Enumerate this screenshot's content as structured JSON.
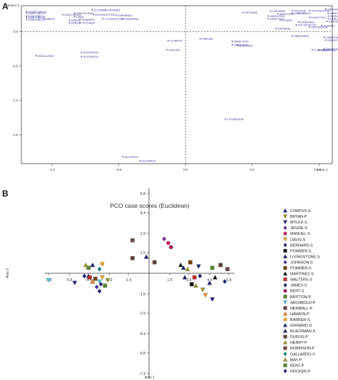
{
  "panels": {
    "a": "A",
    "b": "B"
  },
  "chart_data": [
    {
      "type": "scatter",
      "xlabel": "Facteur 1",
      "ylabel": "Facteur 2",
      "x_ticks": [
        "-1.0",
        "-0.5",
        "0.0",
        "0.5",
        "1.0"
      ],
      "y_ticks": [
        "-1.5",
        "-1.0",
        "-0.5",
        "0.0"
      ],
      "xlim": [
        -1.23,
        1.1
      ],
      "ylim": [
        -1.92,
        0.38
      ],
      "point_color": "#3a3a9c",
      "points": [
        {
          "label": "26SARCHBOLD",
          "x": -1.19,
          "y": 0.29
        },
        {
          "label": "23ARCHBOLD",
          "x": -1.19,
          "y": 0.27
        },
        {
          "label": "27ARCHBOLD",
          "x": -1.19,
          "y": 0.23
        },
        {
          "label": "25ARCHBOLD",
          "x": -1.19,
          "y": 0.21
        },
        {
          "label": "22ARCHBOLD",
          "x": -1.19,
          "y": 0.18
        },
        {
          "label": "26BENT",
          "x": -1.06,
          "y": 0.19
        },
        {
          "label": "21ARCHBOLD",
          "x": -0.92,
          "y": 0.25
        },
        {
          "label": "19BENT",
          "x": -0.87,
          "y": 0.17
        },
        {
          "label": "20BENT",
          "x": -0.87,
          "y": 0.13
        },
        {
          "label": "23BLACKHAW",
          "x": -0.83,
          "y": 0.27
        },
        {
          "label": "13BAY",
          "x": -0.83,
          "y": 0.22
        },
        {
          "label": "22HAWKIN",
          "x": -0.79,
          "y": 0.18
        },
        {
          "label": "17FOSHER",
          "x": -0.79,
          "y": 0.13
        },
        {
          "label": "20TJAMES",
          "x": -0.7,
          "y": 0.32
        },
        {
          "label": "19HJAMES",
          "x": -0.6,
          "y": 0.32
        },
        {
          "label": "22LIVINGSTONE",
          "x": -0.69,
          "y": 0.25
        },
        {
          "label": "17LIVINGSTONE",
          "x": -0.62,
          "y": 0.19
        },
        {
          "label": "21NEWBALL",
          "x": -0.52,
          "y": 0.24
        },
        {
          "label": "16NEWBALL",
          "x": -0.47,
          "y": 0.19
        },
        {
          "label": "29POMMIE",
          "x": 0.43,
          "y": 0.28
        },
        {
          "label": "15POMMIE",
          "x": 0.64,
          "y": 0.3
        },
        {
          "label": "22DUFFIS",
          "x": 0.8,
          "y": 0.31
        },
        {
          "label": "14MYLES",
          "x": 0.8,
          "y": 0.27
        },
        {
          "label": "16WALTERS",
          "x": 0.62,
          "y": 0.23
        },
        {
          "label": "16WALTERS",
          "x": 0.69,
          "y": 0.26
        },
        {
          "label": "15BRITTON",
          "x": 0.62,
          "y": 0.19
        },
        {
          "label": "19JOHNSTONE",
          "x": 0.93,
          "y": 0.31
        },
        {
          "label": "23DAVIS",
          "x": 0.85,
          "y": 0.27
        },
        {
          "label": "21WHITTON",
          "x": 0.93,
          "y": 0.21
        },
        {
          "label": "23BRYAN",
          "x": 1.05,
          "y": 0.33
        },
        {
          "label": "22BRYAN",
          "x": 1.07,
          "y": 0.27
        },
        {
          "label": "12MALVAN",
          "x": 1.07,
          "y": 0.23
        },
        {
          "label": "21BRYAN",
          "x": 1.07,
          "y": 0.19
        },
        {
          "label": "20BRYAN",
          "x": 1.06,
          "y": 0.15
        },
        {
          "label": "12HENRY",
          "x": 1.02,
          "y": 0.09
        },
        {
          "label": "16MARTINEZ",
          "x": 1.04,
          "y": -0.08
        },
        {
          "label": "25MARTINEZ",
          "x": 1.05,
          "y": -0.12
        },
        {
          "label": "16MARTINEZ",
          "x": 1.04,
          "y": -0.25
        },
        {
          "label": "15MARTINEZ",
          "x": 1.0,
          "y": -0.27
        },
        {
          "label": "21JOHNSON",
          "x": 0.95,
          "y": -0.26
        },
        {
          "label": "23BERNARD",
          "x": 0.8,
          "y": -0.06
        },
        {
          "label": "19MANUEL",
          "x": 0.68,
          "y": 0.05
        },
        {
          "label": "21PLANTATION",
          "x": 0.83,
          "y": 0.1
        },
        {
          "label": "22ROBINSON",
          "x": 0.93,
          "y": 0.07
        },
        {
          "label": "23NEWBALL",
          "x": 0.85,
          "y": 0.14
        },
        {
          "label": "27DAVIS",
          "x": 0.71,
          "y": 0.17
        },
        {
          "label": "25WALTERS",
          "x": 0.35,
          "y": -0.19
        },
        {
          "label": "35HOCKER",
          "x": 0.39,
          "y": -0.2
        },
        {
          "label": "26WALTERS",
          "x": 0.35,
          "y": -0.14
        },
        {
          "label": "27BRYAN",
          "x": 0.11,
          "y": -0.1
        },
        {
          "label": "17GIBSON",
          "x": -0.13,
          "y": -0.13
        },
        {
          "label": "18JESSIE",
          "x": -0.14,
          "y": -0.26
        },
        {
          "label": "16JOHNSON",
          "x": -0.78,
          "y": -0.3
        },
        {
          "label": "15JOHNSON",
          "x": -0.78,
          "y": -0.36
        },
        {
          "label": "30GALLARDO",
          "x": -1.12,
          "y": -0.35
        },
        {
          "label": "17ROBINSON",
          "x": 0.3,
          "y": -1.27
        },
        {
          "label": "18CORRUS",
          "x": -0.47,
          "y": -1.82
        },
        {
          "label": "20CORRUS",
          "x": -0.34,
          "y": -1.88
        }
      ]
    },
    {
      "type": "scatter",
      "title": "PCO case scores (Euclidean)",
      "xlabel": "Axis 1",
      "ylabel": "Axis 2",
      "x_ticks": [
        "-7.3",
        "-5.8",
        "-4.4",
        "-2.9",
        "-1.5",
        "1.5",
        "2.9",
        "4.4",
        "5.8"
      ],
      "x_tick_values": [
        -7.3,
        -5.8,
        -4.4,
        -2.9,
        -1.5,
        1.5,
        2.9,
        4.4,
        5.8
      ],
      "y_ticks": [
        "5.8",
        "4.4",
        "2.9",
        "1.5",
        "-1.5",
        "-2.9",
        "-4.4",
        "-5.8",
        "-7.3"
      ],
      "y_tick_values": [
        5.8,
        4.4,
        2.9,
        1.5,
        -1.5,
        -2.9,
        -4.4,
        -5.8,
        -7.3
      ],
      "xlim": [
        -7.6,
        6.2
      ],
      "ylim": [
        -7.6,
        6.2
      ],
      "legend": [
        {
          "name": "CORPUS-S",
          "shape": "tri",
          "color": "#1a237e"
        },
        {
          "name": "BRYAN-P",
          "shape": "tri-down",
          "color": "#9e9d24"
        },
        {
          "name": "MYLES-S",
          "shape": "tri-down",
          "color": "#1a237e"
        },
        {
          "name": "JESSIE-S",
          "shape": "diamond",
          "color": "#7b1fa2"
        },
        {
          "name": "MANUEL-S",
          "shape": "circle",
          "color": "#d81b60"
        },
        {
          "name": "DAVIS-S",
          "shape": "tri-down",
          "color": "#f9a825"
        },
        {
          "name": "BERNARD-S",
          "shape": "diamond",
          "color": "#1a237e"
        },
        {
          "name": "POMMER-S",
          "shape": "square",
          "color": "#111111"
        },
        {
          "name": "LIVINGSTONE-S",
          "shape": "tri",
          "color": "#1a237e"
        },
        {
          "name": "JOHNSON-S",
          "shape": "diamond",
          "color": "#512da8"
        },
        {
          "name": "POMMER-S",
          "shape": "square",
          "color": "#7b3f00"
        },
        {
          "name": "MARTINEZ-S",
          "shape": "tri",
          "color": "#111111"
        },
        {
          "name": "WALTERS-S",
          "shape": "square",
          "color": "#c62828"
        },
        {
          "name": "JAMES-S",
          "shape": "diamond",
          "color": "#1a237e"
        },
        {
          "name": "BENT-S",
          "shape": "circle",
          "color": "#ad1457"
        },
        {
          "name": "BRITTON-P",
          "shape": "square",
          "color": "#558b2f"
        },
        {
          "name": "ARCHBOLD-P",
          "shape": "tri-down",
          "color": "#4dd0e1"
        },
        {
          "name": "NEWBALL-P",
          "shape": "square",
          "color": "#5d4037"
        },
        {
          "name": "HAWKIN-P",
          "shape": "tri",
          "color": "#f57f17"
        },
        {
          "name": "BARKER-S",
          "shape": "circle",
          "color": "#f9a825"
        },
        {
          "name": "GRINARD-S",
          "shape": "tri",
          "color": "#1a237e"
        },
        {
          "name": "BLACKMAN-S",
          "shape": "tri",
          "color": "#1a237e"
        },
        {
          "name": "DUFFIS-P",
          "shape": "square",
          "color": "#5d4037"
        },
        {
          "name": "HENRY-P",
          "shape": "tri",
          "color": "#9e9d24"
        },
        {
          "name": "ROBINSON-P",
          "shape": "square",
          "color": "#6d4c41"
        },
        {
          "name": "GALLARDO-S",
          "shape": "diamond",
          "color": "#00897b"
        },
        {
          "name": "MAY-P",
          "shape": "tri",
          "color": "#9e9d24"
        },
        {
          "name": "BENT-P",
          "shape": "square",
          "color": "#558b2f"
        },
        {
          "name": "HOCKER-P",
          "shape": "diamond",
          "color": "#1a237e"
        }
      ],
      "points": [
        {
          "x": -7.3,
          "y": -0.5,
          "s": 16
        },
        {
          "x": -5.4,
          "y": -0.7,
          "s": 2
        },
        {
          "x": -4.7,
          "y": -0.2,
          "s": 6
        },
        {
          "x": -4.4,
          "y": -0.2,
          "s": 20
        },
        {
          "x": -4.3,
          "y": -0.3,
          "s": 12
        },
        {
          "x": -4.1,
          "y": -0.6,
          "s": 18
        },
        {
          "x": -3.9,
          "y": -0.4,
          "s": 10
        },
        {
          "x": -3.6,
          "y": -0.6,
          "s": 16
        },
        {
          "x": -4.4,
          "y": 0.4,
          "s": 15
        },
        {
          "x": -4.6,
          "y": 0.6,
          "s": 26
        },
        {
          "x": -4.1,
          "y": 0.6,
          "s": 21
        },
        {
          "x": -3.6,
          "y": 0.3,
          "s": 25
        },
        {
          "x": -3.4,
          "y": -0.3,
          "s": 5
        },
        {
          "x": -3.8,
          "y": -1.0,
          "s": 9
        },
        {
          "x": -3.6,
          "y": -1.3,
          "s": 28
        },
        {
          "x": -3.5,
          "y": -0.8,
          "s": 13
        },
        {
          "x": -3.4,
          "y": 0.7,
          "s": 19
        },
        {
          "x": -3.2,
          "y": -0.9,
          "s": 27
        },
        {
          "x": -3.0,
          "y": -0.5,
          "s": 1
        },
        {
          "x": -1.2,
          "y": 1.1,
          "s": 17
        },
        {
          "x": -1.2,
          "y": 2.4,
          "s": 24
        },
        {
          "x": -0.2,
          "y": 1.2,
          "s": 0
        },
        {
          "x": 0.4,
          "y": 0.8,
          "s": 22
        },
        {
          "x": 1.1,
          "y": 2.5,
          "s": 3
        },
        {
          "x": 1.4,
          "y": 2.2,
          "s": 4
        },
        {
          "x": 1.6,
          "y": 1.9,
          "s": 14
        },
        {
          "x": 2.3,
          "y": 0.6,
          "s": 11
        },
        {
          "x": 2.5,
          "y": 0.4,
          "s": 21
        },
        {
          "x": 2.6,
          "y": -0.3,
          "s": 0
        },
        {
          "x": 2.8,
          "y": 0.3,
          "s": 23
        },
        {
          "x": 3.0,
          "y": 0.8,
          "s": 10
        },
        {
          "x": 3.1,
          "y": -0.8,
          "s": 7
        },
        {
          "x": 3.3,
          "y": -0.3,
          "s": 12
        },
        {
          "x": 3.4,
          "y": -0.9,
          "s": 23
        },
        {
          "x": 3.6,
          "y": 0.5,
          "s": 2
        },
        {
          "x": 3.7,
          "y": -0.2,
          "s": 6
        },
        {
          "x": 3.9,
          "y": -1.2,
          "s": 1
        },
        {
          "x": 4.1,
          "y": -1.6,
          "s": 5
        },
        {
          "x": 4.4,
          "y": -0.7,
          "s": 8
        },
        {
          "x": 4.6,
          "y": -1.9,
          "s": 2
        },
        {
          "x": 4.6,
          "y": 0.4,
          "s": 27
        },
        {
          "x": 4.8,
          "y": -0.3,
          "s": 11
        },
        {
          "x": 5.2,
          "y": 0.6,
          "s": 22
        },
        {
          "x": 5.5,
          "y": -0.6,
          "s": 13
        },
        {
          "x": 5.7,
          "y": 0.3,
          "s": 24
        }
      ]
    }
  ]
}
